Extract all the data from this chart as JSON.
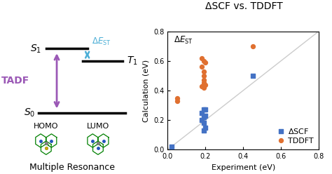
{
  "title_scatter": "ΔSCF vs. TDDFT",
  "xlabel_scatter": "Experiment (eV)",
  "ylabel_scatter": "Calculation (eV)",
  "xlim": [
    0.0,
    0.8
  ],
  "ylim": [
    0.0,
    0.8
  ],
  "xticks": [
    0.0,
    0.2,
    0.4,
    0.6,
    0.8
  ],
  "yticks": [
    0.0,
    0.2,
    0.4,
    0.6,
    0.8
  ],
  "dscf_points": [
    [
      0.18,
      0.25
    ],
    [
      0.19,
      0.27
    ],
    [
      0.2,
      0.27
    ],
    [
      0.19,
      0.22
    ],
    [
      0.18,
      0.2
    ],
    [
      0.2,
      0.23
    ],
    [
      0.19,
      0.18
    ],
    [
      0.2,
      0.15
    ],
    [
      0.19,
      0.13
    ],
    [
      0.45,
      0.5
    ],
    [
      0.02,
      0.02
    ]
  ],
  "tddft_points": [
    [
      0.18,
      0.62
    ],
    [
      0.19,
      0.6
    ],
    [
      0.2,
      0.59
    ],
    [
      0.18,
      0.56
    ],
    [
      0.19,
      0.53
    ],
    [
      0.19,
      0.5
    ],
    [
      0.19,
      0.47
    ],
    [
      0.19,
      0.45
    ],
    [
      0.18,
      0.43
    ],
    [
      0.19,
      0.42
    ],
    [
      0.2,
      0.44
    ],
    [
      0.05,
      0.35
    ],
    [
      0.05,
      0.33
    ],
    [
      0.45,
      0.7
    ]
  ],
  "dscf_color": "#4472c4",
  "tddft_color": "#e07030",
  "diagonal_color": "#cccccc",
  "bg_color": "#ffffff",
  "tadf_arrow_color": "#9b59b6",
  "est_arrow_color": "#4baed6",
  "est_label_color": "#4baed6",
  "tadf_label_color": "#9b59b6",
  "level_lw": 2.5,
  "homo_lumo_label_fontsize": 8,
  "multiple_resonance_fontsize": 9,
  "level_label_fontsize": 10,
  "scatter_title_fontsize": 10,
  "scatter_tick_fontsize": 7,
  "scatter_label_fontsize": 8,
  "legend_fontsize": 8
}
